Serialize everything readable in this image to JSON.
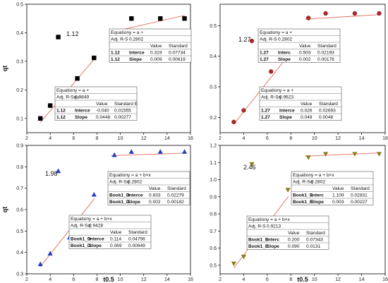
{
  "axes_titles": {
    "x": "t0.5",
    "y": "qt"
  },
  "chart_data": [
    {
      "type": "scatter",
      "marker": "square",
      "color": "#000000",
      "xlim": [
        2,
        16
      ],
      "ylim": [
        0.05,
        0.5
      ],
      "xticks": [
        "2",
        "4",
        "6",
        "8",
        "10",
        "12",
        "14",
        "16"
      ],
      "yticks": [
        "0.1",
        "0.2",
        "0.3",
        "0.4",
        "0.5"
      ],
      "ytick_values": [
        0.1,
        0.2,
        0.3,
        0.4,
        0.5
      ],
      "annotation": "1.12",
      "x": [
        3.16,
        4.0,
        4.69,
        5.66,
        6.32,
        7.75,
        10.95,
        13.42,
        15.49
      ],
      "y": [
        0.1,
        0.145,
        0.385,
        0.2,
        0.24,
        0.312,
        0.45,
        0.45,
        0.45
      ],
      "fits": [
        {
          "x": [
            3.16,
            7.9
          ],
          "y": [
            0.086,
            0.314
          ]
        },
        {
          "x": [
            9.3,
            15.5
          ],
          "y": [
            0.403,
            0.461
          ]
        }
      ],
      "tables": [
        {
          "rows": [
            [
              "Equation",
              "y = a +"
            ],
            [
              "Adj. R-Squ",
              "0.9849"
            ],
            [
              "",
              "",
              "Value",
              "Standard E"
            ],
            [
              "1.12",
              "Interce",
              "-0.040",
              "0.01555"
            ],
            [
              "1.12",
              "Slope",
              "0.0448",
              "0.00277"
            ]
          ]
        },
        {
          "rows": [
            [
              "Equation",
              "y = a +"
            ],
            [
              "Adj. R-S",
              "0.2802"
            ],
            [
              "",
              "",
              "Value",
              "Standard"
            ],
            [
              "1.12",
              "Interce",
              "0.319",
              "0.07734"
            ],
            [
              "1.12",
              "Slope",
              "0.009",
              "0.00619"
            ]
          ]
        }
      ]
    },
    {
      "type": "scatter",
      "marker": "circle",
      "color": "#a52a2a",
      "xlim": [
        2,
        16
      ],
      "ylim": [
        0.15,
        0.57
      ],
      "xticks": [
        "2",
        "4",
        "6",
        "8",
        "10",
        "12",
        "14",
        "16"
      ],
      "yticks": [
        "0.2",
        "0.3",
        "0.4",
        "0.5"
      ],
      "ytick_values": [
        0.2,
        0.3,
        0.4,
        0.5
      ],
      "annotation": "1.27",
      "x": [
        3.16,
        4.0,
        4.69,
        5.66,
        6.32,
        7.75,
        9.49,
        10.95,
        13.42,
        15.49
      ],
      "y": [
        0.185,
        0.223,
        0.45,
        0.28,
        0.35,
        0.41,
        0.525,
        0.54,
        0.54,
        0.54
      ],
      "fits": [
        {
          "x": [
            3.16,
            7.8
          ],
          "y": [
            0.178,
            0.403
          ]
        },
        {
          "x": [
            9.2,
            15.5
          ],
          "y": [
            0.521,
            0.536
          ]
        }
      ],
      "tables": [
        {
          "rows": [
            [
              "Equation",
              "y = a +"
            ],
            [
              "Adj. R-Sq",
              "0.9623"
            ],
            [
              "",
              "",
              "Value",
              "Standard"
            ],
            [
              "1.27",
              "Interce",
              "0.026",
              "0.02693"
            ],
            [
              "1.27",
              "Slope",
              "0.048",
              "0.0048"
            ]
          ]
        },
        {
          "rows": [
            [
              "Equation",
              "y = a +"
            ],
            [
              "Adj. R-S",
              "0.2802"
            ],
            [
              "",
              "",
              "Value",
              "Standard"
            ],
            [
              "1.27",
              "Interc",
              "0.503",
              "0.02193"
            ],
            [
              "1.27",
              "Slope",
              "0.002",
              "0.00176"
            ]
          ]
        }
      ]
    },
    {
      "type": "scatter",
      "marker": "triangle-up",
      "color": "#1f3fbf",
      "xlim": [
        2,
        16
      ],
      "ylim": [
        0.3,
        0.9
      ],
      "xticks": [
        "2",
        "4",
        "6",
        "8",
        "10",
        "12",
        "14",
        "16"
      ],
      "yticks": [
        "0.3",
        "0.4",
        "0.5",
        "0.6",
        "0.7",
        "0.8",
        "0.9"
      ],
      "ytick_values": [
        0.3,
        0.4,
        0.5,
        0.6,
        0.7,
        0.8,
        0.9
      ],
      "annotation": "1.98",
      "x": [
        3.16,
        4.0,
        4.69,
        5.66,
        6.32,
        7.75,
        9.49,
        10.95,
        13.42,
        15.49
      ],
      "y": [
        0.345,
        0.395,
        0.78,
        0.47,
        0.555,
        0.67,
        0.855,
        0.87,
        0.87,
        0.87
      ],
      "fits": [
        {
          "x": [
            3.16,
            7.8
          ],
          "y": [
            0.334,
            0.652
          ]
        },
        {
          "x": [
            9.2,
            15.5
          ],
          "y": [
            0.852,
            0.864
          ]
        }
      ],
      "tables": [
        {
          "rows": [
            [
              "Equation",
              "y = a + b×x"
            ],
            [
              "Adj. R-Sq",
              "0.9428"
            ],
            [
              "",
              "",
              "Value",
              "Standard"
            ],
            [
              "Book1_D",
              "Interce",
              "0.114",
              "0.04756"
            ],
            [
              "Book1_D",
              "Slope",
              "0.069",
              "0.00849"
            ]
          ]
        },
        {
          "rows": [
            [
              "Equation",
              "y = a + b×x"
            ],
            [
              "Adj. R-Sq",
              "0.2802"
            ],
            [
              "",
              "",
              "Value",
              "Standard"
            ],
            [
              "Book1_D",
              "Interce",
              "0.833",
              "0.02279"
            ],
            [
              "Book1_D",
              "Slope",
              "0.002",
              "0.00182"
            ]
          ]
        }
      ]
    },
    {
      "type": "scatter",
      "marker": "triangle-down",
      "color": "#8b7d1f",
      "xlim": [
        2,
        16
      ],
      "ylim": [
        0.45,
        1.2
      ],
      "xticks": [
        "2",
        "4",
        "6",
        "8",
        "10",
        "12",
        "14",
        "16"
      ],
      "yticks": [
        "0.5",
        "0.6",
        "0.7",
        "0.8",
        "0.9",
        "1.0",
        "1.1",
        "1.2"
      ],
      "ytick_values": [
        0.5,
        0.6,
        0.7,
        0.8,
        0.9,
        1.0,
        1.1,
        1.2
      ],
      "annotation": "2.46",
      "x": [
        3.16,
        4.0,
        4.69,
        5.66,
        6.32,
        7.75,
        9.49,
        10.95,
        13.42,
        15.49
      ],
      "y": [
        0.51,
        0.55,
        1.09,
        0.645,
        0.775,
        0.94,
        1.13,
        1.15,
        1.15,
        1.15
      ],
      "fits": [
        {
          "x": [
            3.16,
            7.8
          ],
          "y": [
            0.484,
            0.902
          ]
        },
        {
          "x": [
            9.2,
            15.5
          ],
          "y": [
            1.137,
            1.156
          ]
        }
      ],
      "tables": [
        {
          "rows": [
            [
              "Equation",
              "y = a + b×x"
            ],
            [
              "Adj. R-S",
              "0.9213"
            ],
            [
              "",
              "",
              "Value",
              "Standard"
            ],
            [
              "Book1_E",
              "Interc",
              "0.200",
              "0.07343"
            ],
            [
              "Book1_E",
              "Slope",
              "0.090",
              "0.0131"
            ]
          ]
        },
        {
          "rows": [
            [
              "Equation",
              "y = a + b×x"
            ],
            [
              "Adj. R-Sq",
              "0.2802"
            ],
            [
              "",
              "",
              "Value",
              "Standard"
            ],
            [
              "Book1_E",
              "Interc",
              "1.109",
              "0.02831"
            ],
            [
              "Book1_E",
              "Slope",
              "0.003",
              "0.00227"
            ]
          ]
        }
      ]
    }
  ]
}
